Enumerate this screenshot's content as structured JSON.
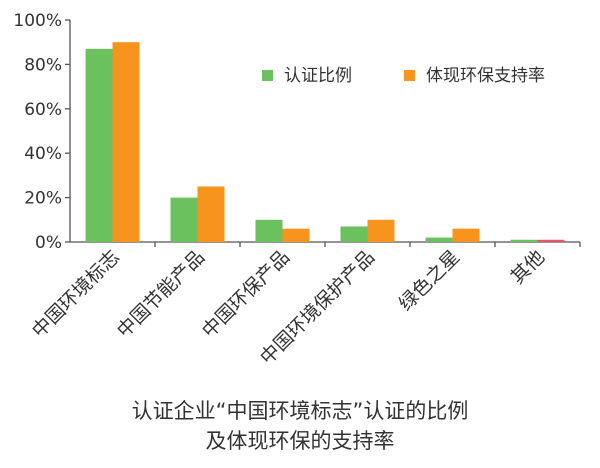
{
  "chart_data": {
    "type": "bar",
    "categories": [
      "中国环境标志",
      "中国节能产品",
      "中国环保产品",
      "中国环境保护产品",
      "绿色之星",
      "其他"
    ],
    "series": [
      {
        "name": "认证比例",
        "values": [
          87,
          20,
          10,
          7,
          2,
          1
        ],
        "color": "#6cc15f",
        "point_colors": [
          null,
          null,
          null,
          null,
          null,
          "#6cc15f"
        ]
      },
      {
        "name": "体现环保支持率",
        "values": [
          90,
          25,
          6,
          10,
          6,
          1
        ],
        "color": "#f7941d",
        "point_colors": [
          null,
          null,
          null,
          null,
          null,
          "#e05a6a"
        ]
      }
    ],
    "ylim": [
      0,
      100
    ],
    "yticks": [
      "0%",
      "20%",
      "40%",
      "60%",
      "80%",
      "100%"
    ],
    "legend_position": "top-right",
    "title_lines": [
      "认证企业“中国环境标志”认证的比例",
      "及体现环保的支持率"
    ]
  }
}
